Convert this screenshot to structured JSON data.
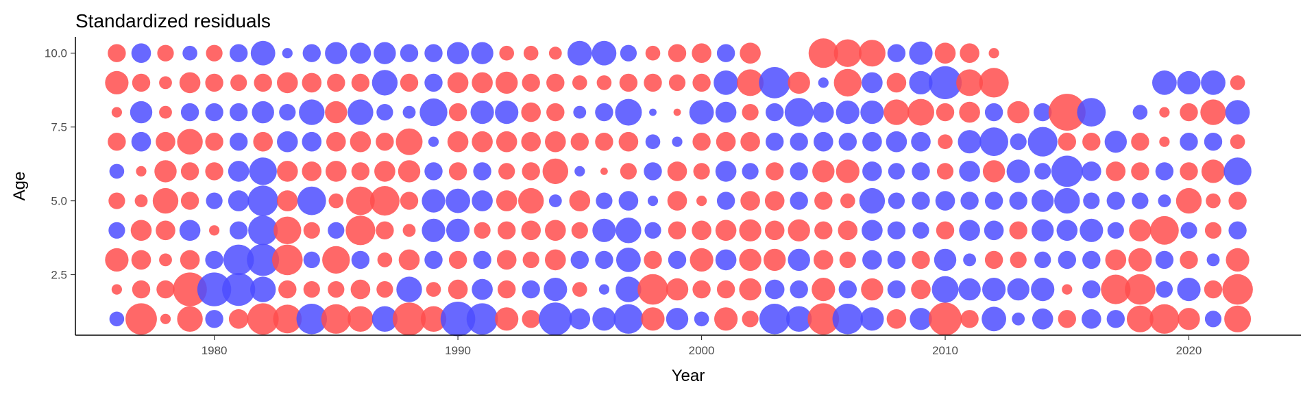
{
  "chart_data": {
    "type": "scatter",
    "title": "Standardized residuals",
    "xlabel": "Year",
    "ylabel": "Age",
    "xlim": [
      1974.3,
      2024.6
    ],
    "ylim": [
      0.45,
      10.55
    ],
    "x_ticks": [
      1980,
      1990,
      2000,
      2010,
      2020
    ],
    "y_ticks": [
      2.5,
      5.0,
      7.5,
      10.0
    ],
    "y_tick_labels": [
      "2.5",
      "5.0",
      "7.5",
      "10.0"
    ],
    "grid": false,
    "legend": "none",
    "colors": {
      "positive": "#ff4d4d",
      "negative": "#4d4dff"
    },
    "encoding": {
      "size": "abs(residual)",
      "color": "sign(residual)"
    },
    "years": [
      1976,
      1977,
      1978,
      1979,
      1980,
      1981,
      1982,
      1983,
      1984,
      1985,
      1986,
      1987,
      1988,
      1989,
      1990,
      1991,
      1992,
      1993,
      1994,
      1995,
      1996,
      1997,
      1998,
      1999,
      2000,
      2001,
      2002,
      2003,
      2004,
      2005,
      2006,
      2007,
      2008,
      2009,
      2010,
      2011,
      2012,
      2013,
      2014,
      2015,
      2016,
      2017,
      2018,
      2019,
      2020,
      2021,
      2022
    ],
    "ages": [
      1,
      2,
      3,
      4,
      5,
      6,
      7,
      8,
      9,
      10
    ],
    "residuals": {
      "1": [
        -0.4,
        1.8,
        0.2,
        1.2,
        -0.6,
        0.7,
        1.8,
        1.5,
        -1.7,
        1.6,
        1.2,
        -1.2,
        2.0,
        1.2,
        -2.2,
        -1.8,
        1.0,
        0.6,
        -2.0,
        -0.8,
        -1.0,
        -1.6,
        1.0,
        -0.9,
        -0.4,
        1.0,
        0.5,
        -1.7,
        -1.2,
        1.8,
        -1.7,
        -1.0,
        0.7,
        -0.9,
        2.0,
        0.6,
        -1.1,
        -0.3,
        -0.8,
        0.6,
        -0.7,
        -0.6,
        1.3,
        1.6,
        0.9,
        -0.5,
        1.3
      ],
      "2": [
        0.2,
        0.6,
        0.6,
        2.1,
        -2.1,
        -2.0,
        -1.2,
        0.6,
        0.5,
        0.5,
        0.7,
        0.5,
        -1.2,
        0.4,
        0.7,
        -0.8,
        0.6,
        -0.6,
        -1.0,
        0.4,
        -0.2,
        -1.2,
        1.7,
        0.9,
        0.6,
        0.6,
        0.9,
        -0.7,
        -0.6,
        1.0,
        -0.6,
        0.9,
        -0.6,
        0.7,
        -1.3,
        -0.9,
        -1.0,
        -0.9,
        -1.0,
        0.2,
        -0.6,
        1.6,
        1.7,
        -0.5,
        -1.0,
        0.6,
        1.7
      ],
      "3": [
        1.0,
        0.7,
        0.3,
        0.7,
        -0.6,
        -1.7,
        -1.9,
        1.7,
        -0.5,
        1.4,
        -0.6,
        0.4,
        0.8,
        -0.6,
        0.6,
        -0.6,
        0.7,
        0.5,
        0.8,
        -0.6,
        -0.6,
        -1.1,
        0.6,
        -0.6,
        1.0,
        -0.8,
        0.9,
        0.9,
        -0.9,
        0.7,
        0.5,
        -0.7,
        -0.6,
        0.6,
        -0.9,
        -0.3,
        0.6,
        0.5,
        -0.5,
        -0.6,
        -0.6,
        0.8,
        1.0,
        -0.6,
        0.6,
        -0.3,
        1.0
      ],
      "4": [
        -0.5,
        0.8,
        0.7,
        -0.8,
        0.2,
        -0.6,
        -1.6,
        1.4,
        0.5,
        -0.5,
        1.6,
        0.6,
        0.3,
        -1.0,
        -1.0,
        0.5,
        0.6,
        0.7,
        0.8,
        0.5,
        -1.0,
        -1.2,
        -0.5,
        0.6,
        0.7,
        0.8,
        0.9,
        0.7,
        0.9,
        0.6,
        0.7,
        -0.8,
        -0.6,
        -0.5,
        0.6,
        -0.8,
        -0.7,
        0.6,
        -0.9,
        -0.8,
        -1.0,
        -0.5,
        0.9,
        1.5,
        -0.5,
        0.5,
        -0.6
      ],
      "5": [
        0.5,
        0.3,
        1.2,
        0.6,
        -0.5,
        -0.8,
        -1.7,
        0.8,
        -1.5,
        0.4,
        1.5,
        1.6,
        0.6,
        -1.0,
        -1.1,
        -0.8,
        0.8,
        1.2,
        -0.3,
        0.8,
        -0.5,
        -0.7,
        -0.2,
        0.7,
        0.2,
        -0.6,
        0.7,
        0.7,
        -0.6,
        0.6,
        0.4,
        -1.2,
        -0.5,
        -0.6,
        -0.7,
        -0.6,
        -0.6,
        -0.6,
        -0.9,
        -1.2,
        -0.5,
        -0.6,
        -0.5,
        -0.3,
        1.2,
        0.4,
        0.6
      ],
      "6": [
        -0.4,
        0.2,
        0.9,
        0.6,
        0.6,
        -0.8,
        -1.4,
        0.8,
        0.7,
        0.8,
        0.6,
        0.8,
        0.9,
        -0.6,
        0.6,
        -0.6,
        0.5,
        0.6,
        1.2,
        -0.2,
        0.1,
        0.5,
        -0.6,
        0.7,
        0.5,
        -0.8,
        -0.5,
        0.6,
        -0.6,
        0.9,
        1.0,
        -0.7,
        -0.5,
        -0.6,
        0.5,
        -0.8,
        0.9,
        -1.0,
        -0.5,
        -1.8,
        -0.7,
        0.7,
        0.6,
        -0.6,
        0.6,
        1.0,
        -1.4
      ],
      "7": [
        0.6,
        -0.7,
        0.7,
        1.2,
        0.6,
        -0.6,
        0.7,
        -0.8,
        -0.7,
        0.7,
        0.8,
        0.6,
        1.3,
        -0.2,
        0.8,
        0.8,
        0.8,
        0.7,
        0.8,
        0.6,
        0.6,
        0.7,
        -0.4,
        -0.2,
        0.6,
        0.7,
        0.7,
        -0.6,
        -0.6,
        -0.7,
        -0.6,
        -0.7,
        -0.8,
        -0.7,
        0.4,
        -1.0,
        -1.5,
        -0.5,
        -1.6,
        0.6,
        0.6,
        -0.9,
        0.6,
        0.2,
        -0.6,
        -0.6,
        0.4
      ],
      "8": [
        0.2,
        -0.9,
        0.3,
        -0.6,
        -0.6,
        -0.6,
        -0.9,
        -0.5,
        -1.2,
        0.9,
        -1.2,
        -0.5,
        -0.3,
        -1.4,
        0.6,
        -1.0,
        -1.0,
        0.7,
        0.6,
        -0.3,
        -0.6,
        -1.3,
        -0.1,
        0.1,
        -1.1,
        -0.8,
        0.5,
        -0.6,
        -1.5,
        -0.8,
        -1.0,
        -1.0,
        1.2,
        1.3,
        0.6,
        0.8,
        -0.6,
        0.9,
        -0.6,
        2.5,
        -1.5,
        0.0,
        -0.4,
        0.2,
        0.6,
        1.2,
        -1.1
      ],
      "9": [
        1.0,
        0.6,
        0.3,
        0.8,
        0.6,
        0.5,
        0.6,
        0.8,
        0.7,
        0.6,
        0.6,
        -1.2,
        0.6,
        -0.6,
        0.8,
        0.8,
        0.9,
        0.6,
        0.6,
        0.4,
        0.4,
        0.6,
        0.6,
        0.5,
        0.6,
        -1.1,
        1.3,
        -1.8,
        0.9,
        -0.2,
        1.4,
        -0.8,
        0.7,
        -1.0,
        -2.0,
        1.3,
        1.6,
        0.0,
        0.0,
        0.0,
        0.0,
        0.0,
        0.0,
        -1.1,
        -1.0,
        -1.1,
        0.4
      ],
      "10": [
        0.6,
        -0.7,
        0.5,
        -0.4,
        0.5,
        -0.6,
        -1.1,
        -0.2,
        -0.6,
        -0.9,
        -0.8,
        -0.9,
        -0.6,
        -0.6,
        -0.9,
        -0.9,
        0.4,
        0.4,
        0.3,
        -1.1,
        -1.1,
        -0.5,
        0.4,
        0.6,
        0.7,
        -0.6,
        0.8,
        0.0,
        0.0,
        1.6,
        1.4,
        1.3,
        -0.6,
        -1.0,
        0.8,
        0.7,
        0.2,
        0.0,
        0.0,
        0.0,
        0.0,
        0.0,
        0.0,
        0.0,
        0.0,
        0.0,
        0.0
      ]
    }
  }
}
